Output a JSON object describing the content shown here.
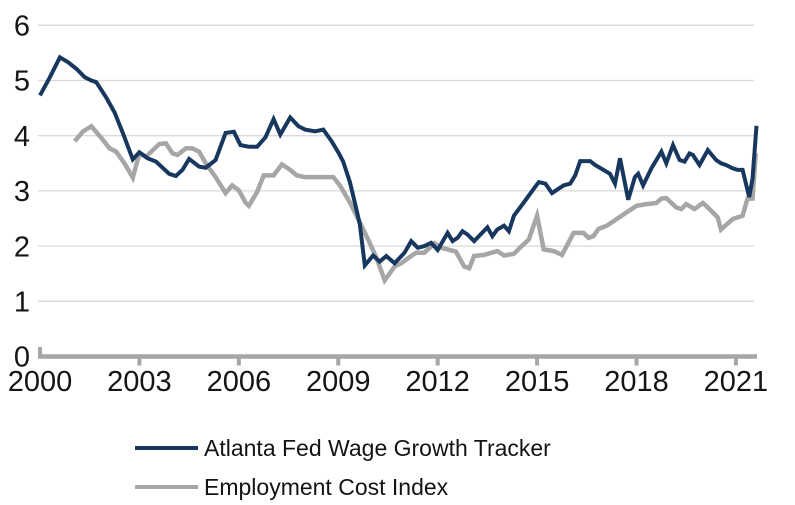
{
  "colors": {
    "background": "#ffffff",
    "gridline": "#d9d9d9",
    "axis": "#a6a6a6",
    "text": "#151515",
    "navy": "#17375e",
    "gray": "#a6a6a6"
  },
  "legend": {
    "items": [
      {
        "label": "Atlanta Fed Wage Growth Tracker",
        "color": "#17375e"
      },
      {
        "label": "Employment Cost Index",
        "color": "#a6a6a6"
      }
    ]
  },
  "chart_data": {
    "type": "line",
    "title": "",
    "xlabel": "",
    "ylabel": "",
    "legend_position": "bottom-left",
    "grid": "horizontal",
    "x_axis": {
      "range": [
        2000,
        2021.7
      ],
      "ticks": [
        2000,
        2003,
        2006,
        2009,
        2012,
        2015,
        2018,
        2021
      ]
    },
    "y_axis": {
      "range": [
        0,
        6
      ],
      "ticks": [
        0,
        1,
        2,
        3,
        4,
        5,
        6
      ]
    },
    "series": [
      {
        "name": "Employment Cost Index",
        "color": "#a6a6a6",
        "width": 4.5,
        "points": [
          [
            2001.05,
            3.9
          ],
          [
            2001.3,
            4.08
          ],
          [
            2001.55,
            4.17
          ],
          [
            2001.85,
            3.96
          ],
          [
            2002.1,
            3.77
          ],
          [
            2002.3,
            3.71
          ],
          [
            2002.55,
            3.5
          ],
          [
            2002.8,
            3.24
          ],
          [
            2003.0,
            3.68
          ],
          [
            2003.2,
            3.62
          ],
          [
            2003.6,
            3.85
          ],
          [
            2003.8,
            3.86
          ],
          [
            2004.0,
            3.68
          ],
          [
            2004.15,
            3.65
          ],
          [
            2004.4,
            3.77
          ],
          [
            2004.6,
            3.77
          ],
          [
            2004.8,
            3.71
          ],
          [
            2005.0,
            3.5
          ],
          [
            2005.3,
            3.25
          ],
          [
            2005.6,
            2.96
          ],
          [
            2005.8,
            3.1
          ],
          [
            2006.0,
            3.01
          ],
          [
            2006.2,
            2.79
          ],
          [
            2006.3,
            2.73
          ],
          [
            2006.55,
            2.98
          ],
          [
            2006.75,
            3.28
          ],
          [
            2007.05,
            3.28
          ],
          [
            2007.3,
            3.48
          ],
          [
            2007.55,
            3.38
          ],
          [
            2007.75,
            3.28
          ],
          [
            2008.0,
            3.25
          ],
          [
            2008.4,
            3.25
          ],
          [
            2008.85,
            3.25
          ],
          [
            2009.05,
            3.1
          ],
          [
            2009.35,
            2.79
          ],
          [
            2009.65,
            2.43
          ],
          [
            2009.9,
            2.12
          ],
          [
            2010.15,
            1.79
          ],
          [
            2010.4,
            1.38
          ],
          [
            2010.7,
            1.63
          ],
          [
            2010.9,
            1.69
          ],
          [
            2011.2,
            1.82
          ],
          [
            2011.35,
            1.88
          ],
          [
            2011.6,
            1.88
          ],
          [
            2011.9,
            2.05
          ],
          [
            2012.1,
            1.97
          ],
          [
            2012.3,
            1.94
          ],
          [
            2012.55,
            1.9
          ],
          [
            2012.8,
            1.63
          ],
          [
            2012.95,
            1.6
          ],
          [
            2013.1,
            1.82
          ],
          [
            2013.4,
            1.84
          ],
          [
            2013.8,
            1.91
          ],
          [
            2014.0,
            1.83
          ],
          [
            2014.3,
            1.86
          ],
          [
            2014.5,
            1.98
          ],
          [
            2014.75,
            2.12
          ],
          [
            2015.0,
            2.55
          ],
          [
            2015.2,
            1.94
          ],
          [
            2015.5,
            1.91
          ],
          [
            2015.75,
            1.84
          ],
          [
            2016.1,
            2.24
          ],
          [
            2016.4,
            2.24
          ],
          [
            2016.55,
            2.15
          ],
          [
            2016.7,
            2.18
          ],
          [
            2016.85,
            2.31
          ],
          [
            2017.1,
            2.37
          ],
          [
            2017.4,
            2.49
          ],
          [
            2017.7,
            2.61
          ],
          [
            2018.0,
            2.73
          ],
          [
            2018.3,
            2.76
          ],
          [
            2018.6,
            2.78
          ],
          [
            2018.75,
            2.86
          ],
          [
            2018.9,
            2.87
          ],
          [
            2019.2,
            2.7
          ],
          [
            2019.35,
            2.67
          ],
          [
            2019.5,
            2.76
          ],
          [
            2019.75,
            2.67
          ],
          [
            2020.0,
            2.78
          ],
          [
            2020.1,
            2.73
          ],
          [
            2020.3,
            2.61
          ],
          [
            2020.45,
            2.52
          ],
          [
            2020.55,
            2.3
          ],
          [
            2020.7,
            2.38
          ],
          [
            2020.9,
            2.49
          ],
          [
            2021.05,
            2.52
          ],
          [
            2021.2,
            2.55
          ],
          [
            2021.35,
            2.86
          ],
          [
            2021.5,
            2.86
          ],
          [
            2021.6,
            3.68
          ]
        ]
      },
      {
        "name": "Atlanta Fed Wage Growth Tracker",
        "color": "#17375e",
        "width": 4,
        "points": [
          [
            2000.0,
            4.73
          ],
          [
            2000.3,
            5.06
          ],
          [
            2000.6,
            5.42
          ],
          [
            2000.85,
            5.33
          ],
          [
            2001.1,
            5.21
          ],
          [
            2001.35,
            5.06
          ],
          [
            2001.55,
            5.0
          ],
          [
            2001.7,
            4.97
          ],
          [
            2002.0,
            4.69
          ],
          [
            2002.25,
            4.42
          ],
          [
            2002.5,
            4.05
          ],
          [
            2002.8,
            3.57
          ],
          [
            2003.0,
            3.7
          ],
          [
            2003.25,
            3.59
          ],
          [
            2003.5,
            3.53
          ],
          [
            2003.9,
            3.31
          ],
          [
            2004.1,
            3.27
          ],
          [
            2004.3,
            3.38
          ],
          [
            2004.5,
            3.58
          ],
          [
            2004.8,
            3.44
          ],
          [
            2005.0,
            3.42
          ],
          [
            2005.3,
            3.56
          ],
          [
            2005.6,
            4.05
          ],
          [
            2005.85,
            4.07
          ],
          [
            2006.05,
            3.83
          ],
          [
            2006.3,
            3.8
          ],
          [
            2006.55,
            3.8
          ],
          [
            2006.8,
            3.97
          ],
          [
            2007.05,
            4.3
          ],
          [
            2007.25,
            4.02
          ],
          [
            2007.55,
            4.33
          ],
          [
            2007.8,
            4.17
          ],
          [
            2008.0,
            4.11
          ],
          [
            2008.3,
            4.08
          ],
          [
            2008.55,
            4.11
          ],
          [
            2008.8,
            3.9
          ],
          [
            2009.0,
            3.7
          ],
          [
            2009.15,
            3.53
          ],
          [
            2009.35,
            3.16
          ],
          [
            2009.5,
            2.79
          ],
          [
            2009.65,
            2.4
          ],
          [
            2009.8,
            1.65
          ],
          [
            2010.05,
            1.83
          ],
          [
            2010.25,
            1.72
          ],
          [
            2010.45,
            1.82
          ],
          [
            2010.7,
            1.69
          ],
          [
            2011.0,
            1.88
          ],
          [
            2011.2,
            2.09
          ],
          [
            2011.4,
            1.97
          ],
          [
            2011.6,
            2.0
          ],
          [
            2011.8,
            2.06
          ],
          [
            2012.0,
            1.93
          ],
          [
            2012.3,
            2.24
          ],
          [
            2012.45,
            2.09
          ],
          [
            2012.6,
            2.15
          ],
          [
            2012.75,
            2.27
          ],
          [
            2012.9,
            2.21
          ],
          [
            2013.1,
            2.09
          ],
          [
            2013.5,
            2.34
          ],
          [
            2013.65,
            2.18
          ],
          [
            2013.8,
            2.3
          ],
          [
            2014.0,
            2.37
          ],
          [
            2014.15,
            2.27
          ],
          [
            2014.3,
            2.55
          ],
          [
            2014.6,
            2.79
          ],
          [
            2014.9,
            3.04
          ],
          [
            2015.05,
            3.16
          ],
          [
            2015.25,
            3.13
          ],
          [
            2015.45,
            2.96
          ],
          [
            2015.8,
            3.1
          ],
          [
            2016.0,
            3.13
          ],
          [
            2016.15,
            3.28
          ],
          [
            2016.3,
            3.54
          ],
          [
            2016.6,
            3.54
          ],
          [
            2016.75,
            3.47
          ],
          [
            2017.0,
            3.38
          ],
          [
            2017.2,
            3.31
          ],
          [
            2017.35,
            3.13
          ],
          [
            2017.5,
            3.59
          ],
          [
            2017.75,
            2.84
          ],
          [
            2017.95,
            3.25
          ],
          [
            2018.05,
            3.31
          ],
          [
            2018.2,
            3.1
          ],
          [
            2018.45,
            3.41
          ],
          [
            2018.6,
            3.56
          ],
          [
            2018.75,
            3.71
          ],
          [
            2018.9,
            3.5
          ],
          [
            2019.1,
            3.83
          ],
          [
            2019.3,
            3.56
          ],
          [
            2019.45,
            3.53
          ],
          [
            2019.6,
            3.68
          ],
          [
            2019.7,
            3.65
          ],
          [
            2019.9,
            3.47
          ],
          [
            2020.15,
            3.74
          ],
          [
            2020.4,
            3.56
          ],
          [
            2020.55,
            3.5
          ],
          [
            2020.7,
            3.47
          ],
          [
            2020.9,
            3.41
          ],
          [
            2021.05,
            3.38
          ],
          [
            2021.2,
            3.38
          ],
          [
            2021.4,
            2.89
          ],
          [
            2021.5,
            3.22
          ],
          [
            2021.62,
            4.18
          ]
        ]
      }
    ]
  }
}
